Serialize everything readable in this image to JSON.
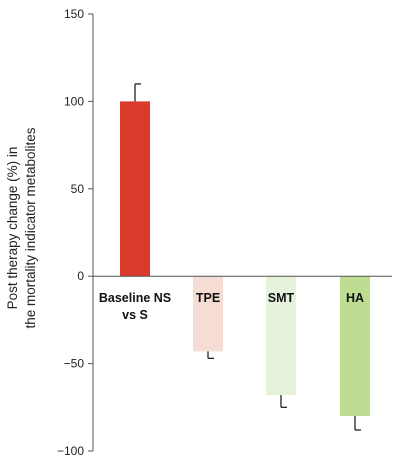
{
  "chart_data": {
    "type": "bar",
    "title": "",
    "ylabel_lines": [
      "Post therapy change (%) in",
      "the mortality indicator metabolites"
    ],
    "ylim": [
      -100,
      150
    ],
    "yticks": [
      150,
      100,
      50,
      0,
      -50,
      -100
    ],
    "ytick_labels": [
      "150",
      "100",
      "50",
      "0",
      "−50",
      "−100"
    ],
    "grid": false,
    "legend": "none",
    "categories": [
      {
        "lines": [
          "Baseline NS",
          "vs S"
        ]
      },
      {
        "lines": [
          "TPE"
        ]
      },
      {
        "lines": [
          "SMT"
        ]
      },
      {
        "lines": [
          "HA"
        ]
      }
    ],
    "values": [
      100,
      -43,
      -68,
      -80
    ],
    "errors": [
      10,
      4,
      7,
      8
    ],
    "colors": [
      "#d93a2b",
      "#f5ddd6",
      "#e6f2dc",
      "#bedd93"
    ],
    "error_color": "#222222"
  }
}
